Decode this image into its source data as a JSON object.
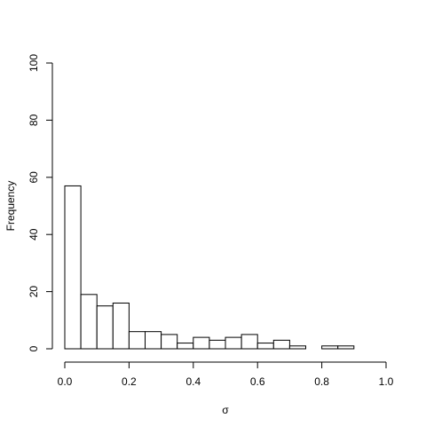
{
  "chart_data": {
    "type": "bar",
    "title": "",
    "xlabel": "σ",
    "ylabel": "Frequency",
    "xlim": [
      0.0,
      1.0
    ],
    "ylim": [
      0,
      100
    ],
    "x_ticks": [
      "0.0",
      "0.2",
      "0.4",
      "0.6",
      "0.8",
      "1.0"
    ],
    "y_ticks": [
      "0",
      "20",
      "40",
      "60",
      "80",
      "100"
    ],
    "bin_width": 0.05,
    "bins": [
      {
        "start": 0.0,
        "end": 0.05,
        "count": 57
      },
      {
        "start": 0.05,
        "end": 0.1,
        "count": 19
      },
      {
        "start": 0.1,
        "end": 0.15,
        "count": 15
      },
      {
        "start": 0.15,
        "end": 0.2,
        "count": 16
      },
      {
        "start": 0.2,
        "end": 0.25,
        "count": 6
      },
      {
        "start": 0.25,
        "end": 0.3,
        "count": 6
      },
      {
        "start": 0.3,
        "end": 0.35,
        "count": 5
      },
      {
        "start": 0.35,
        "end": 0.4,
        "count": 2
      },
      {
        "start": 0.4,
        "end": 0.45,
        "count": 4
      },
      {
        "start": 0.45,
        "end": 0.5,
        "count": 3
      },
      {
        "start": 0.5,
        "end": 0.55,
        "count": 4
      },
      {
        "start": 0.55,
        "end": 0.6,
        "count": 5
      },
      {
        "start": 0.6,
        "end": 0.65,
        "count": 2
      },
      {
        "start": 0.65,
        "end": 0.7,
        "count": 3
      },
      {
        "start": 0.7,
        "end": 0.75,
        "count": 1
      },
      {
        "start": 0.75,
        "end": 0.8,
        "count": 0
      },
      {
        "start": 0.8,
        "end": 0.85,
        "count": 1
      },
      {
        "start": 0.85,
        "end": 0.9,
        "count": 1
      },
      {
        "start": 0.9,
        "end": 0.95,
        "count": 0
      },
      {
        "start": 0.95,
        "end": 1.0,
        "count": 0
      }
    ],
    "grid": false,
    "colors": {
      "bar_fill": "#ffffff",
      "bar_stroke": "#000000"
    }
  }
}
